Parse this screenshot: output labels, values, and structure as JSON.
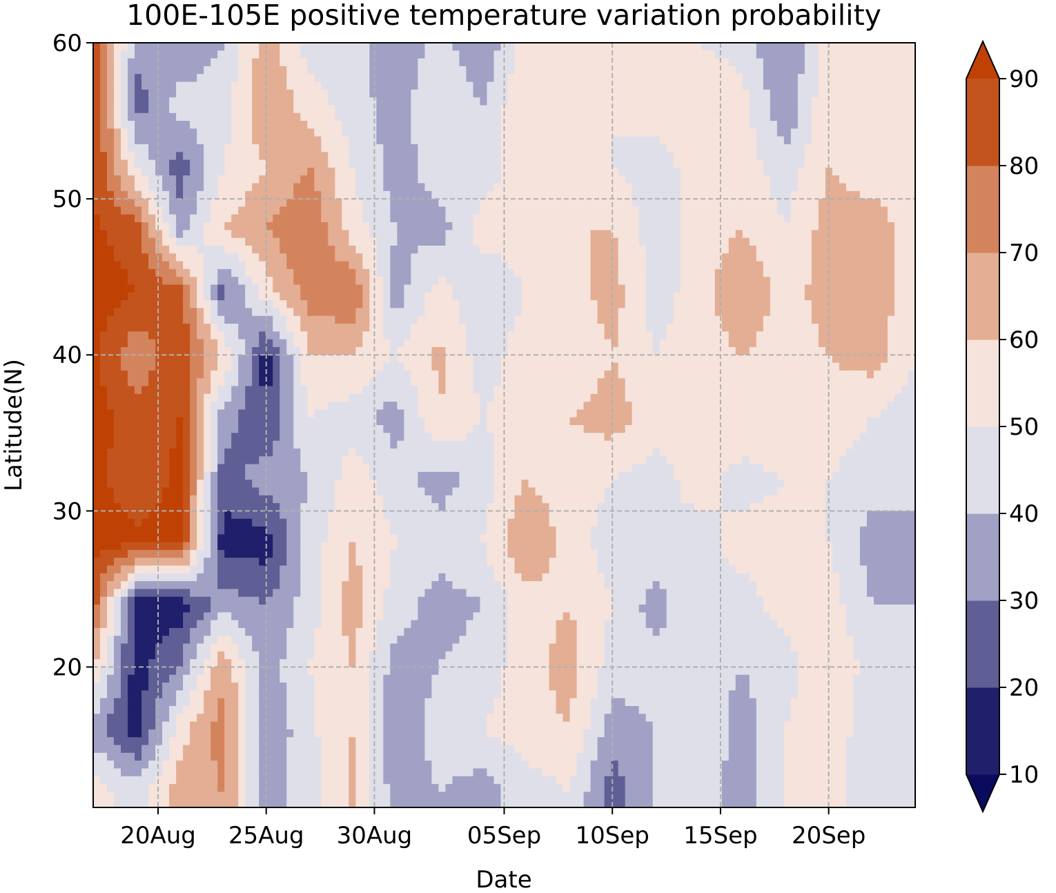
{
  "chart_data": {
    "type": "heatmap",
    "subtype": "filled-contour (Hovmoller diagram)",
    "title": "100E-105E positive temperature variation probability",
    "xlabel": "Date",
    "ylabel": "Latitude(N)",
    "x_range": [
      "2016-08-17",
      "2016-09-24"
    ],
    "ylim": [
      11,
      60
    ],
    "x_ticks": [
      {
        "date": "2016-08-20",
        "label": "20Aug"
      },
      {
        "date": "2016-08-25",
        "label": "25Aug"
      },
      {
        "date": "2016-08-30",
        "label": "30Aug"
      },
      {
        "date": "2016-09-05",
        "label": "05Sep"
      },
      {
        "date": "2016-09-10",
        "label": "10Sep"
      },
      {
        "date": "2016-09-15",
        "label": "15Sep"
      },
      {
        "date": "2016-09-20",
        "label": "20Sep"
      }
    ],
    "y_ticks": [
      20,
      30,
      40,
      50,
      60
    ],
    "grid": "dashed, on",
    "colorbar": {
      "position": "right",
      "extend": "both",
      "ticks": [
        10,
        20,
        30,
        40,
        50,
        60,
        70,
        80,
        90
      ],
      "levels": [
        {
          "range": "<10",
          "color": "#0a0a5e"
        },
        {
          "range": "10-20",
          "color": "#1f1f6b"
        },
        {
          "range": "20-30",
          "color": "#5f5f96"
        },
        {
          "range": "30-40",
          "color": "#a1a1c5"
        },
        {
          "range": "40-50",
          "color": "#dfdfea"
        },
        {
          "range": "50-60",
          "color": "#f6e3db"
        },
        {
          "range": "60-70",
          "color": "#e3ae94"
        },
        {
          "range": "70-80",
          "color": "#d4845d"
        },
        {
          "range": "80-90",
          "color": "#c4541d"
        },
        {
          "range": ">90",
          "color": "#bf4204"
        }
      ]
    },
    "grid_values": {
      "latitudes": [
        12,
        16,
        20,
        24,
        28,
        32,
        36,
        40,
        44,
        48,
        52,
        56,
        60
      ],
      "dates": [
        "2016-08-17",
        "2016-08-19",
        "2016-08-21",
        "2016-08-23",
        "2016-08-25",
        "2016-08-27",
        "2016-08-29",
        "2016-08-31",
        "2016-09-02",
        "2016-09-04",
        "2016-09-06",
        "2016-09-08",
        "2016-09-10",
        "2016-09-12",
        "2016-09-14",
        "2016-09-16",
        "2016-09-18",
        "2016-09-20",
        "2016-09-22",
        "2016-09-24"
      ],
      "values": [
        [
          55,
          45,
          65,
          70,
          35,
          45,
          62,
          35,
          40,
          35,
          45,
          50,
          25,
          40,
          45,
          35,
          50,
          55,
          40,
          45
        ],
        [
          35,
          15,
          55,
          75,
          30,
          48,
          60,
          30,
          45,
          50,
          55,
          60,
          35,
          40,
          50,
          35,
          50,
          60,
          40,
          45
        ],
        [
          60,
          15,
          30,
          68,
          35,
          50,
          60,
          35,
          40,
          45,
          55,
          65,
          45,
          45,
          45,
          40,
          45,
          60,
          45,
          45
        ],
        [
          85,
          15,
          15,
          35,
          30,
          45,
          65,
          45,
          35,
          40,
          55,
          60,
          50,
          35,
          50,
          45,
          55,
          55,
          40,
          40
        ],
        [
          95,
          92,
          92,
          15,
          15,
          45,
          60,
          50,
          45,
          50,
          70,
          55,
          45,
          50,
          45,
          55,
          55,
          50,
          35,
          40
        ],
        [
          92,
          85,
          92,
          25,
          35,
          40,
          55,
          45,
          35,
          45,
          60,
          55,
          50,
          45,
          55,
          45,
          50,
          50,
          45,
          40
        ],
        [
          95,
          85,
          90,
          35,
          20,
          50,
          45,
          35,
          60,
          50,
          55,
          60,
          65,
          55,
          55,
          60,
          60,
          55,
          50,
          45
        ],
        [
          92,
          72,
          88,
          60,
          15,
          60,
          60,
          50,
          62,
          45,
          55,
          50,
          60,
          50,
          55,
          60,
          55,
          60,
          65,
          50
        ],
        [
          95,
          90,
          85,
          25,
          55,
          75,
          80,
          35,
          55,
          40,
          50,
          55,
          65,
          45,
          55,
          70,
          55,
          65,
          70,
          50
        ],
        [
          92,
          85,
          35,
          60,
          70,
          80,
          55,
          40,
          35,
          55,
          55,
          60,
          60,
          45,
          55,
          60,
          50,
          65,
          65,
          55
        ],
        [
          90,
          50,
          25,
          50,
          60,
          70,
          50,
          35,
          45,
          45,
          55,
          55,
          50,
          45,
          55,
          55,
          45,
          60,
          55,
          60
        ],
        [
          95,
          25,
          45,
          45,
          70,
          55,
          45,
          35,
          50,
          40,
          60,
          55,
          50,
          55,
          60,
          55,
          30,
          60,
          50,
          55
        ],
        [
          90,
          35,
          30,
          40,
          65,
          45,
          45,
          30,
          45,
          30,
          55,
          55,
          55,
          55,
          50,
          45,
          30,
          55,
          55,
          50
        ]
      ]
    }
  }
}
